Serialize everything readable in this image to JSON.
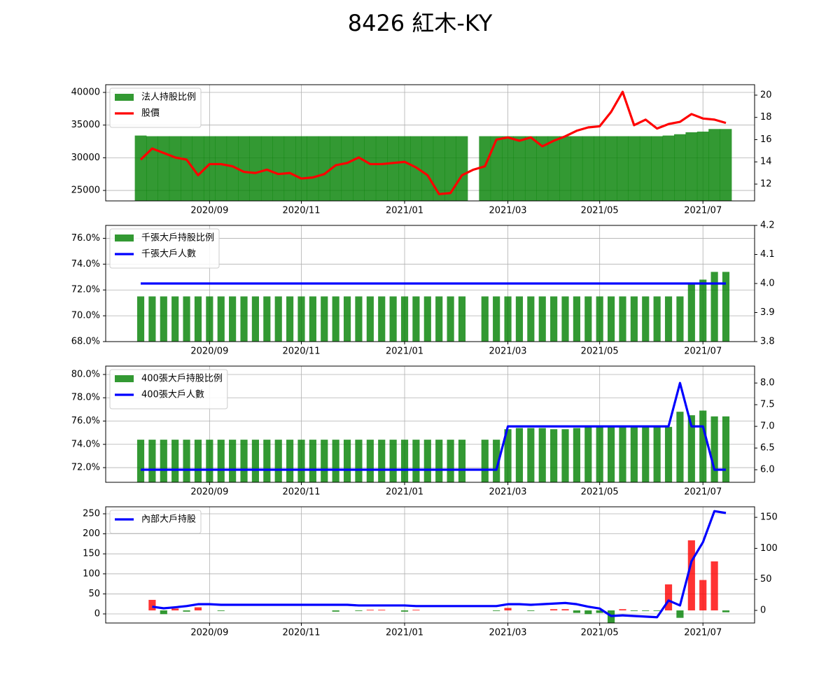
{
  "title": "8426 紅木-KY",
  "chart_data": [
    {
      "type": "combo",
      "legend": "upper left",
      "grid": true,
      "categories": [
        null,
        null,
        null,
        null,
        null,
        null,
        "2020/09",
        null,
        null,
        null,
        null,
        null,
        null,
        null,
        "2020/11",
        null,
        null,
        null,
        null,
        null,
        null,
        null,
        null,
        "2021/01",
        null,
        null,
        null,
        null,
        null,
        null,
        null,
        null,
        "2021/03",
        null,
        null,
        null,
        null,
        null,
        null,
        null,
        "2021/05",
        null,
        null,
        null,
        null,
        null,
        null,
        null,
        null,
        "2021/07",
        null,
        null
      ],
      "ylim": [
        23400,
        41180
      ],
      "yticks": [
        25000,
        30000,
        35000,
        40000
      ],
      "y2lim": [
        10.49,
        20.94
      ],
      "y2ticks": [
        12,
        14,
        16,
        18,
        20
      ],
      "series": [
        {
          "name": "法人持股比例",
          "type": "bar",
          "color": "#008000",
          "values": [
            33400,
            33300,
            33300,
            33300,
            33300,
            33300,
            33300,
            33300,
            33300,
            33300,
            33300,
            33300,
            33300,
            33300,
            33300,
            33300,
            33300,
            33300,
            33300,
            33300,
            33300,
            33300,
            33300,
            33300,
            33300,
            33300,
            33300,
            33300,
            33300,
            null,
            33300,
            33300,
            33300,
            33300,
            33300,
            33300,
            33300,
            33300,
            33300,
            33300,
            33300,
            33300,
            33300,
            33300,
            33300,
            33300,
            33400,
            33600,
            33900,
            34000,
            34400,
            34400
          ]
        },
        {
          "name": "股價",
          "type": "line",
          "color": "#ff0000",
          "axis": "y2",
          "values": [
            14.2,
            15.2,
            14.8,
            14.4,
            14.2,
            12.8,
            13.8,
            13.8,
            13.6,
            13.1,
            13.0,
            13.3,
            12.9,
            13.0,
            12.5,
            12.6,
            12.9,
            13.7,
            13.9,
            14.4,
            13.8,
            13.8,
            13.9,
            14.0,
            13.5,
            12.8,
            11.1,
            11.2,
            12.8,
            13.3,
            13.6,
            16.0,
            16.2,
            15.9,
            16.2,
            15.4,
            15.9,
            16.3,
            16.8,
            17.1,
            17.2,
            18.5,
            20.3,
            17.3,
            17.8,
            17.0,
            17.4,
            17.6,
            18.3,
            17.9,
            17.8,
            17.5
          ]
        }
      ]
    },
    {
      "type": "combo",
      "legend": "upper left",
      "grid": true,
      "categories": [
        null,
        null,
        null,
        null,
        null,
        null,
        "2020/09",
        null,
        null,
        null,
        null,
        null,
        null,
        null,
        "2020/11",
        null,
        null,
        null,
        null,
        null,
        null,
        null,
        null,
        "2021/01",
        null,
        null,
        null,
        null,
        null,
        null,
        null,
        null,
        "2021/03",
        null,
        null,
        null,
        null,
        null,
        null,
        null,
        "2021/05",
        null,
        null,
        null,
        null,
        null,
        null,
        null,
        null,
        "2021/07",
        null,
        null
      ],
      "ylim": [
        68,
        77
      ],
      "yticks": [
        {
          "value": 68,
          "label": "68.0%"
        },
        {
          "value": 70,
          "label": "70.0%"
        },
        {
          "value": 72,
          "label": "72.0%"
        },
        {
          "value": 74,
          "label": "74.0%"
        },
        {
          "value": 76,
          "label": "76.0%"
        }
      ],
      "y2lim": [
        3.8,
        4.2
      ],
      "y2ticks": [
        3.8,
        3.9,
        {
          "value": 4,
          "label": "4.0"
        },
        4.1,
        4.2
      ],
      "series": [
        {
          "name": "千張大戶持股比例",
          "type": "bar",
          "color": "#008000",
          "values": [
            71.5,
            71.5,
            71.5,
            71.5,
            71.5,
            71.5,
            71.5,
            71.5,
            71.5,
            71.5,
            71.5,
            71.5,
            71.5,
            71.5,
            71.5,
            71.5,
            71.5,
            71.5,
            71.5,
            71.5,
            71.5,
            71.5,
            71.5,
            71.5,
            71.5,
            71.5,
            71.5,
            71.5,
            71.5,
            null,
            71.5,
            71.5,
            71.5,
            71.5,
            71.5,
            71.5,
            71.5,
            71.5,
            71.5,
            71.5,
            71.5,
            71.5,
            71.5,
            71.5,
            71.5,
            71.5,
            71.5,
            71.5,
            72.5,
            72.8,
            73.4,
            73.4
          ]
        },
        {
          "name": "千張大戶人數",
          "type": "line",
          "color": "#0000ff",
          "axis": "y2",
          "values": [
            4,
            4,
            4,
            4,
            4,
            4,
            4,
            4,
            4,
            4,
            4,
            4,
            4,
            4,
            4,
            4,
            4,
            4,
            4,
            4,
            4,
            4,
            4,
            4,
            4,
            4,
            4,
            4,
            4,
            4,
            4,
            4,
            4,
            4,
            4,
            4,
            4,
            4,
            4,
            4,
            4,
            4,
            4,
            4,
            4,
            4,
            4,
            4,
            4,
            4,
            4,
            4
          ]
        }
      ]
    },
    {
      "type": "combo",
      "legend": "upper left",
      "grid": true,
      "categories": [
        null,
        null,
        null,
        null,
        null,
        null,
        "2020/09",
        null,
        null,
        null,
        null,
        null,
        null,
        null,
        "2020/11",
        null,
        null,
        null,
        null,
        null,
        null,
        null,
        null,
        "2021/01",
        null,
        null,
        null,
        null,
        null,
        null,
        null,
        null,
        "2021/03",
        null,
        null,
        null,
        null,
        null,
        null,
        null,
        "2021/05",
        null,
        null,
        null,
        null,
        null,
        null,
        null,
        null,
        "2021/07",
        null,
        null
      ],
      "ylim": [
        70.74,
        80.72
      ],
      "yticks": [
        {
          "value": 72,
          "label": "72.0%"
        },
        {
          "value": 74,
          "label": "74.0%"
        },
        {
          "value": 76,
          "label": "76.0%"
        },
        {
          "value": 78,
          "label": "78.0%"
        },
        {
          "value": 80,
          "label": "80.0%"
        }
      ],
      "y2lim": [
        5.71,
        8.39
      ],
      "y2ticks": [
        {
          "value": 6,
          "label": "6.0"
        },
        6.5,
        {
          "value": 7,
          "label": "7.0"
        },
        7.5,
        {
          "value": 8,
          "label": "8.0"
        }
      ],
      "series": [
        {
          "name": "400張大戶持股比例",
          "type": "bar",
          "color": "#008000",
          "values": [
            74.4,
            74.4,
            74.4,
            74.4,
            74.4,
            74.4,
            74.4,
            74.4,
            74.4,
            74.4,
            74.4,
            74.4,
            74.4,
            74.4,
            74.4,
            74.4,
            74.4,
            74.4,
            74.4,
            74.4,
            74.4,
            74.4,
            74.4,
            74.4,
            74.4,
            74.4,
            74.4,
            74.4,
            74.4,
            null,
            74.4,
            74.4,
            75.3,
            75.4,
            75.4,
            75.4,
            75.3,
            75.3,
            75.4,
            75.6,
            75.6,
            75.6,
            75.6,
            75.6,
            75.6,
            75.5,
            75.5,
            76.8,
            76.5,
            76.9,
            76.4,
            76.4
          ]
        },
        {
          "name": "400張大戶人數",
          "type": "line",
          "color": "#0000ff",
          "axis": "y2",
          "values": [
            6,
            6,
            6,
            6,
            6,
            6,
            6,
            6,
            6,
            6,
            6,
            6,
            6,
            6,
            6,
            6,
            6,
            6,
            6,
            6,
            6,
            6,
            6,
            6,
            6,
            6,
            6,
            6,
            6,
            6,
            6,
            6,
            7,
            7,
            7,
            7,
            7,
            7,
            7,
            7,
            7,
            7,
            7,
            7,
            7,
            7,
            7,
            8,
            7,
            7,
            6,
            6
          ]
        }
      ]
    },
    {
      "type": "combo",
      "legend": "upper left",
      "grid": true,
      "categories": [
        null,
        null,
        null,
        null,
        null,
        null,
        "2020/09",
        null,
        null,
        null,
        null,
        null,
        null,
        null,
        "2020/11",
        null,
        null,
        null,
        null,
        null,
        null,
        null,
        null,
        "2021/01",
        null,
        null,
        null,
        null,
        null,
        null,
        null,
        null,
        "2021/03",
        null,
        null,
        null,
        null,
        null,
        null,
        null,
        "2021/05",
        null,
        null,
        null,
        null,
        null,
        null,
        null,
        null,
        "2021/07",
        null,
        null
      ],
      "ylim": [
        -22.7,
        267.5
      ],
      "yticks": [
        0,
        50,
        100,
        150,
        200,
        250
      ],
      "y2lim": [
        -20.3,
        167
      ],
      "y2ticks": [
        0,
        50,
        100,
        150
      ],
      "series": [
        {
          "type": "bar",
          "axis": "y2",
          "color_positive": "#ff0000",
          "color_negative": "#008000",
          "values": [
            null,
            17,
            -6,
            3,
            -2,
            5,
            null,
            -1,
            null,
            null,
            null,
            null,
            null,
            null,
            null,
            null,
            null,
            -2,
            null,
            -1,
            1,
            1,
            null,
            -2,
            1,
            null,
            null,
            null,
            null,
            null,
            null,
            -1,
            4,
            null,
            -1,
            null,
            2,
            2,
            -4,
            -6,
            -4,
            -20,
            2,
            -1,
            -1,
            -1,
            42,
            -12,
            113,
            49,
            79,
            -3
          ]
        },
        {
          "name": "內部大戶持股",
          "type": "line",
          "color": "#0000ff",
          "axis": "y2",
          "values": [
            null,
            6,
            3.4,
            5,
            7,
            10,
            10,
            9,
            9,
            9,
            9,
            9,
            9,
            9,
            9,
            9,
            9,
            9,
            9,
            8,
            8,
            8,
            8,
            8,
            7,
            7,
            7,
            7,
            7,
            7,
            7,
            7,
            10,
            10,
            9,
            10,
            11,
            12,
            10,
            6,
            3,
            -9,
            -8,
            -9,
            -10,
            -11,
            16,
            8,
            79,
            110,
            160,
            157
          ]
        }
      ]
    }
  ]
}
